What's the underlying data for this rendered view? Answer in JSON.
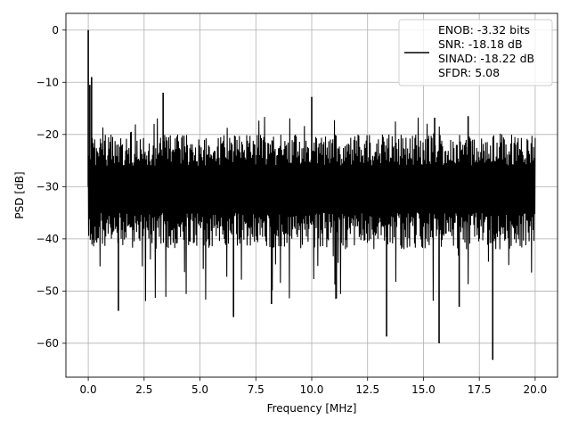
{
  "chart_data": {
    "type": "line",
    "title": "",
    "xlabel": "Frequency [MHz]",
    "ylabel": "PSD [dB]",
    "xlim": [
      -1.0,
      21.0
    ],
    "ylim": [
      -66.5,
      3.2
    ],
    "xticks": [
      0.0,
      2.5,
      5.0,
      7.5,
      10.0,
      12.5,
      15.0,
      17.5,
      20.0
    ],
    "xtick_labels": [
      "0.0",
      "2.5",
      "5.0",
      "7.5",
      "10.0",
      "12.5",
      "15.0",
      "17.5",
      "20.0"
    ],
    "yticks": [
      0,
      -10,
      -20,
      -30,
      -40,
      -50,
      -60
    ],
    "ytick_labels": [
      "0",
      "−10",
      "−20",
      "−30",
      "−40",
      "−50",
      "−60"
    ],
    "grid": true,
    "legend_position": "top-right",
    "legend_lines": [
      "ENOB: -3.32 bits",
      "SNR: -18.18 dB",
      "SINAD: -18.22 dB",
      "SFDR: 5.08"
    ],
    "series": [
      {
        "color": "#000000",
        "x_range": [
          0.0,
          20.0
        ],
        "typical_upper_db": -21,
        "typical_lower_db": -39,
        "peak_points": [
          {
            "x": 0.0,
            "y": 0.0
          },
          {
            "x": 0.07,
            "y": -10.5
          },
          {
            "x": 0.15,
            "y": -9.0
          },
          {
            "x": 3.35,
            "y": -12.0
          },
          {
            "x": 10.0,
            "y": -12.8
          },
          {
            "x": 15.5,
            "y": -16.8
          },
          {
            "x": 17.0,
            "y": -16.5
          }
        ],
        "dip_points": [
          {
            "x": 1.35,
            "y": -53.8
          },
          {
            "x": 6.5,
            "y": -55.0
          },
          {
            "x": 13.35,
            "y": -58.7
          },
          {
            "x": 15.7,
            "y": -60.0
          },
          {
            "x": 18.1,
            "y": -63.2
          },
          {
            "x": 16.6,
            "y": -53.0
          },
          {
            "x": 8.2,
            "y": -52.5
          }
        ]
      }
    ]
  }
}
